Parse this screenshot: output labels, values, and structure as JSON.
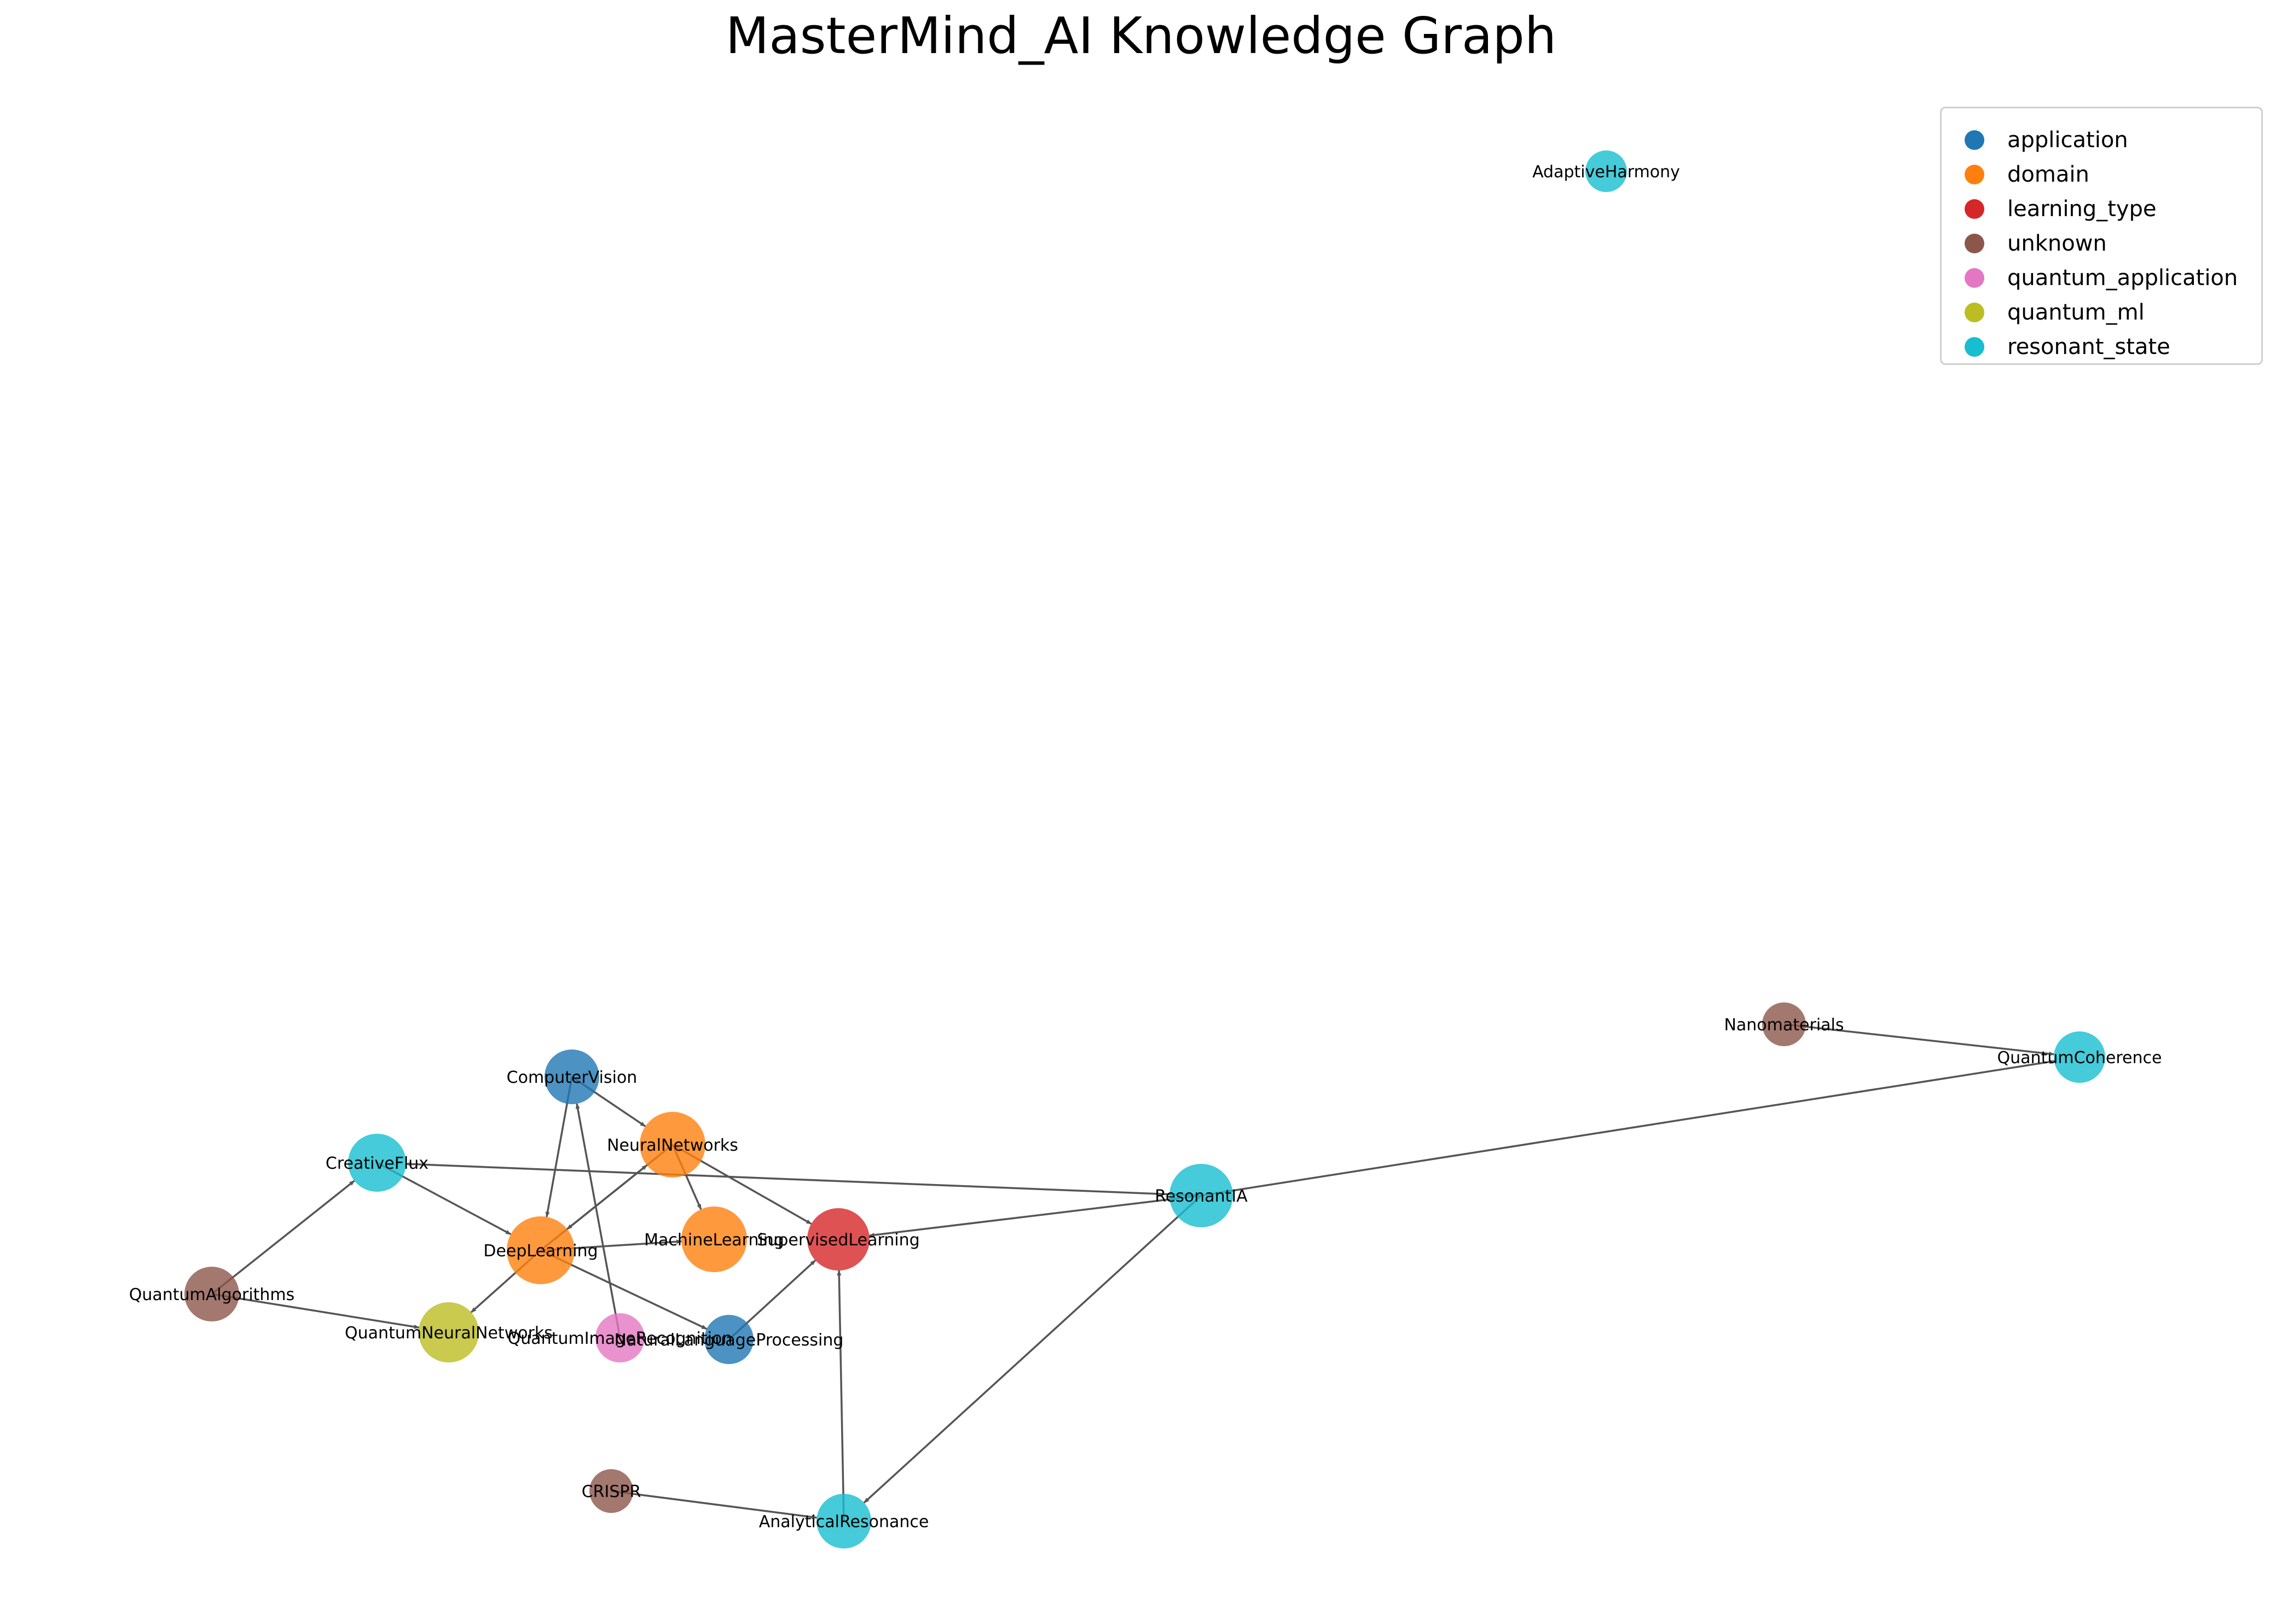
{
  "title": "MasterMind_AI Knowledge Graph",
  "colors": {
    "application": "#1f77b4",
    "domain": "#ff7f0e",
    "learning_type": "#d62728",
    "unknown": "#8c564b",
    "quantum_application": "#e377c2",
    "quantum_ml": "#bcbd22",
    "resonant_state": "#17becf",
    "edge": "#555555"
  },
  "legend": [
    {
      "key": "application",
      "label": "application"
    },
    {
      "key": "domain",
      "label": "domain"
    },
    {
      "key": "learning_type",
      "label": "learning_type"
    },
    {
      "key": "unknown",
      "label": "unknown"
    },
    {
      "key": "quantum_application",
      "label": "quantum_application"
    },
    {
      "key": "quantum_ml",
      "label": "quantum_ml"
    },
    {
      "key": "resonant_state",
      "label": "resonant_state"
    }
  ],
  "nodes": [
    {
      "id": "AdaptiveHarmony",
      "label": "AdaptiveHarmony",
      "type": "resonant_state"
    },
    {
      "id": "Nanomaterials",
      "label": "Nanomaterials",
      "type": "unknown"
    },
    {
      "id": "QuantumCoherence",
      "label": "QuantumCoherence",
      "type": "resonant_state"
    },
    {
      "id": "ComputerVision",
      "label": "ComputerVision",
      "type": "application"
    },
    {
      "id": "NeuralNetworks",
      "label": "NeuralNetworks",
      "type": "domain"
    },
    {
      "id": "CreativeFlux",
      "label": "CreativeFlux",
      "type": "resonant_state"
    },
    {
      "id": "ResonantIA",
      "label": "ResonantIA",
      "type": "resonant_state"
    },
    {
      "id": "MachineLearning",
      "label": "MachineLearning",
      "type": "domain"
    },
    {
      "id": "SupervisedLearning",
      "label": "SupervisedLearning",
      "type": "learning_type"
    },
    {
      "id": "DeepLearning",
      "label": "DeepLearning",
      "type": "domain"
    },
    {
      "id": "QuantumAlgorithms",
      "label": "QuantumAlgorithms",
      "type": "unknown"
    },
    {
      "id": "QuantumNeuralNetworks",
      "label": "QuantumNeuralNetworks",
      "type": "quantum_ml"
    },
    {
      "id": "QuantumImageRecognition",
      "label": "QuantumImageRecognition",
      "type": "quantum_application"
    },
    {
      "id": "NaturalLanguageProcessing",
      "label": "NaturalLanguageProcessing",
      "type": "application"
    },
    {
      "id": "CRISPR",
      "label": "CRISPR",
      "type": "unknown"
    },
    {
      "id": "AnalyticalResonance",
      "label": "AnalyticalResonance",
      "type": "resonant_state"
    }
  ],
  "edges": [
    {
      "from": "Nanomaterials",
      "to": "QuantumCoherence"
    },
    {
      "from": "ResonantIA",
      "to": "QuantumCoherence"
    },
    {
      "from": "ResonantIA",
      "to": "AnalyticalResonance"
    },
    {
      "from": "ResonantIA",
      "to": "CreativeFlux"
    },
    {
      "from": "ResonantIA",
      "to": "SupervisedLearning"
    },
    {
      "from": "ComputerVision",
      "to": "NeuralNetworks"
    },
    {
      "from": "ComputerVision",
      "to": "DeepLearning"
    },
    {
      "from": "NeuralNetworks",
      "to": "MachineLearning"
    },
    {
      "from": "NeuralNetworks",
      "to": "SupervisedLearning"
    },
    {
      "from": "NeuralNetworks",
      "to": "DeepLearning"
    },
    {
      "from": "DeepLearning",
      "to": "NeuralNetworks"
    },
    {
      "from": "DeepLearning",
      "to": "QuantumNeuralNetworks"
    },
    {
      "from": "DeepLearning",
      "to": "NaturalLanguageProcessing"
    },
    {
      "from": "DeepLearning",
      "to": "MachineLearning"
    },
    {
      "from": "CreativeFlux",
      "to": "DeepLearning"
    },
    {
      "from": "QuantumAlgorithms",
      "to": "CreativeFlux"
    },
    {
      "from": "QuantumAlgorithms",
      "to": "QuantumNeuralNetworks"
    },
    {
      "from": "QuantumImageRecognition",
      "to": "ComputerVision"
    },
    {
      "from": "NaturalLanguageProcessing",
      "to": "SupervisedLearning"
    },
    {
      "from": "CRISPR",
      "to": "AnalyticalResonance"
    },
    {
      "from": "AnalyticalResonance",
      "to": "SupervisedLearning"
    }
  ]
}
